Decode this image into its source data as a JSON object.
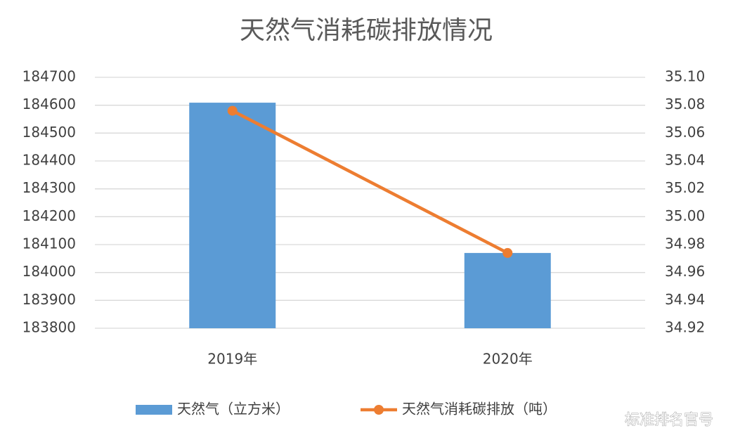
{
  "chart_data": {
    "type": "combo",
    "title": "天然气消耗碳排放情况",
    "categories": [
      "2019年",
      "2020年"
    ],
    "series": [
      {
        "name": "天然气（立方米）",
        "type": "bar",
        "color": "#5b9bd5",
        "values": [
          184609,
          184070
        ]
      },
      {
        "name": "天然气消耗碳排放（吨）",
        "type": "line",
        "axis": "y2",
        "color": "#ed7d31",
        "values": [
          35.076,
          34.974
        ]
      }
    ],
    "ylim": [
      183800,
      184700
    ],
    "yticks": [
      183800,
      183900,
      184000,
      184100,
      184200,
      184300,
      184400,
      184500,
      184600,
      184700
    ],
    "y2lim": [
      34.92,
      35.1
    ],
    "y2ticks": [
      34.92,
      34.94,
      34.96,
      34.98,
      {
        "value": 35.0,
        "label": "35.00"
      },
      35.02,
      35.04,
      35.06,
      35.08,
      {
        "value": 35.1,
        "label": "35.10"
      }
    ],
    "grid": true,
    "legend": "bottom"
  },
  "watermark": "标准排名官号"
}
